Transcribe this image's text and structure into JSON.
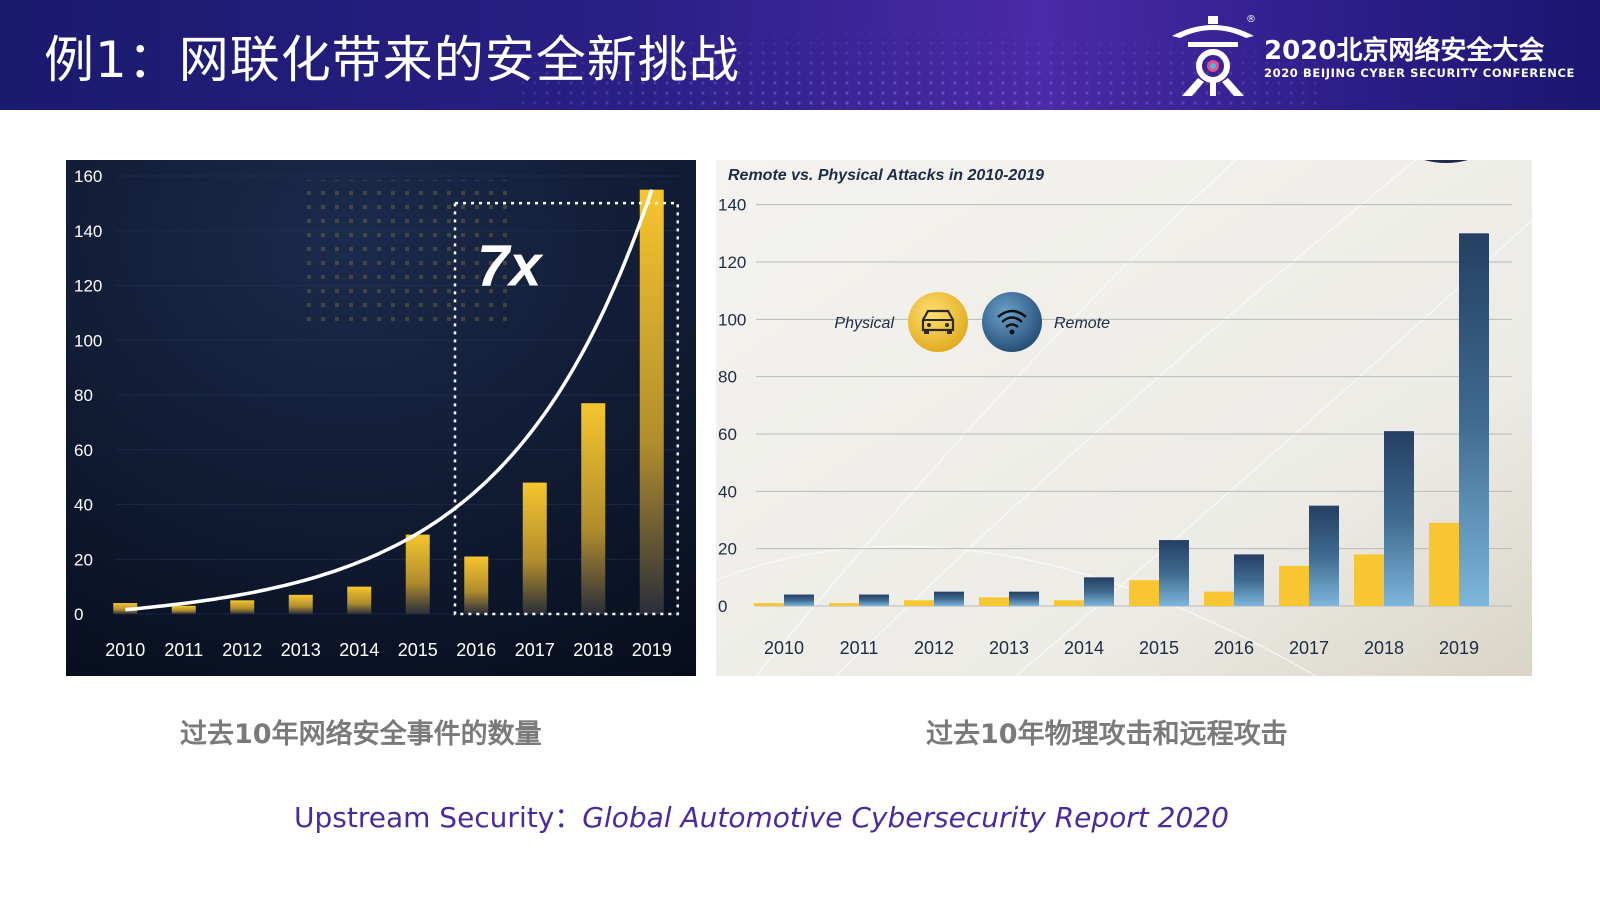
{
  "header": {
    "slide_title": "例1：网联化带来的安全新挑战",
    "conference_cn": "2020北京网络安全大会",
    "conference_en": "2020 BEIJING CYBER SECURITY CONFERENCE",
    "registered_mark": "®",
    "accent_color": "#2a1f85"
  },
  "captions": {
    "left": "过去10年网络安全事件的数量",
    "right": "过去10年物理攻击和远程攻击"
  },
  "source": {
    "publisher": "Upstream Security：",
    "report_title": "Global Automotive Cybersecurity Report 2020"
  },
  "chart_data": [
    {
      "type": "bar",
      "title": "",
      "categories": [
        "2010",
        "2011",
        "2012",
        "2013",
        "2014",
        "2015",
        "2016",
        "2017",
        "2018",
        "2019"
      ],
      "values": [
        4,
        3,
        5,
        7,
        10,
        29,
        21,
        48,
        77,
        155
      ],
      "ylim": [
        0,
        160
      ],
      "yticks": [
        0,
        20,
        40,
        60,
        80,
        100,
        120,
        140,
        160
      ],
      "annotation": "7x",
      "trend_line": true,
      "bar_color": "#f2c12e",
      "background": "#0c1730"
    },
    {
      "type": "bar",
      "title": "Remote vs. Physical Attacks in 2010-2019",
      "categories": [
        "2010",
        "2011",
        "2012",
        "2013",
        "2014",
        "2015",
        "2016",
        "2017",
        "2018",
        "2019"
      ],
      "series": [
        {
          "name": "Physical",
          "values": [
            1,
            1,
            2,
            3,
            2,
            9,
            5,
            14,
            18,
            29
          ],
          "color": "#f7c631"
        },
        {
          "name": "Remote",
          "values": [
            4,
            4,
            5,
            5,
            10,
            23,
            18,
            35,
            61,
            130
          ],
          "color": "#2e5378"
        }
      ],
      "ylim": [
        0,
        150
      ],
      "yticks": [
        0,
        20,
        40,
        60,
        80,
        100,
        120,
        140
      ],
      "legend_placement": "upper-left",
      "grid": true
    }
  ]
}
